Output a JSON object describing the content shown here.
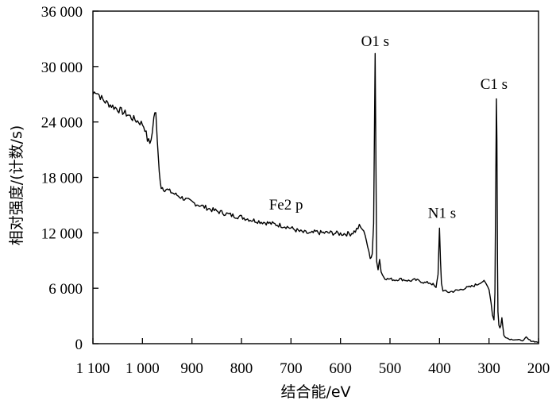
{
  "chart_data": {
    "type": "line",
    "xlabel": "结合能/eV",
    "ylabel": "相对强度/(计数/s)",
    "x_reversed": true,
    "xlim": [
      1100,
      200
    ],
    "ylim": [
      0,
      36000
    ],
    "grid": false,
    "x_ticks": [
      {
        "value": 1100,
        "label": "1 100"
      },
      {
        "value": 1000,
        "label": "1 000"
      },
      {
        "value": 900,
        "label": "900"
      },
      {
        "value": 800,
        "label": "800"
      },
      {
        "value": 700,
        "label": "700"
      },
      {
        "value": 600,
        "label": "600"
      },
      {
        "value": 500,
        "label": "500"
      },
      {
        "value": 400,
        "label": "400"
      },
      {
        "value": 300,
        "label": "300"
      },
      {
        "value": 200,
        "label": "200"
      }
    ],
    "y_ticks": [
      {
        "value": 0,
        "label": "0"
      },
      {
        "value": 6000,
        "label": "6 000"
      },
      {
        "value": 12000,
        "label": "12 000"
      },
      {
        "value": 18000,
        "label": "18 000"
      },
      {
        "value": 24000,
        "label": "24 000"
      },
      {
        "value": 30000,
        "label": "30 000"
      },
      {
        "value": 36000,
        "label": "36 000"
      }
    ],
    "annotations": [
      {
        "text": "O1 s",
        "x": 530,
        "y": 32200
      },
      {
        "text": "C1 s",
        "x": 290,
        "y": 27600
      },
      {
        "text": "Fe2 p",
        "x": 710,
        "y": 14500
      },
      {
        "text": "N1 s",
        "x": 395,
        "y": 13600
      }
    ],
    "series": [
      {
        "x": [
          1100,
          1095,
          1090,
          1080,
          1070,
          1060,
          1050,
          1040,
          1030,
          1020,
          1010,
          1000,
          995,
          990,
          985,
          980,
          977,
          973,
          970,
          966,
          962,
          955,
          945,
          935,
          920,
          900,
          880,
          860,
          840,
          820,
          800,
          780,
          760,
          740,
          720,
          710,
          700,
          690,
          680,
          670,
          660,
          650,
          640,
          620,
          600,
          590,
          580,
          570,
          562,
          556,
          550,
          545,
          540,
          536,
          533,
          530,
          527,
          524,
          521,
          518,
          515,
          510,
          505,
          500,
          490,
          480,
          470,
          460,
          450,
          440,
          430,
          420,
          413,
          407,
          403,
          400,
          398,
          396,
          393,
          390,
          385,
          380,
          370,
          360,
          350,
          340,
          330,
          320,
          310,
          305,
          300,
          296,
          293,
          290,
          288,
          286,
          285,
          284,
          283,
          282,
          280,
          278,
          276,
          274,
          272,
          270,
          266,
          260,
          250,
          240,
          230,
          225,
          220,
          215,
          210,
          205,
          200
        ],
        "y": [
          27000,
          27400,
          27100,
          26400,
          26000,
          25700,
          25400,
          25100,
          24800,
          24400,
          24100,
          23800,
          23300,
          22100,
          21700,
          22800,
          24600,
          25000,
          22000,
          18500,
          17000,
          16800,
          16500,
          16200,
          15800,
          15300,
          14900,
          14500,
          14200,
          13900,
          13700,
          13400,
          13200,
          13000,
          12800,
          12700,
          12500,
          12300,
          12100,
          12000,
          11900,
          12100,
          12000,
          12000,
          11900,
          11900,
          11900,
          12200,
          12700,
          12400,
          11800,
          10500,
          9200,
          9700,
          13000,
          31400,
          9000,
          8000,
          9200,
          7800,
          7400,
          7100,
          7000,
          7000,
          6900,
          7000,
          6900,
          6800,
          6900,
          6800,
          6600,
          6600,
          6400,
          6000,
          7500,
          12500,
          9000,
          6500,
          5800,
          5700,
          5600,
          5600,
          5700,
          5800,
          6000,
          6100,
          6300,
          6500,
          6800,
          6400,
          5900,
          4500,
          3100,
          2600,
          5500,
          20000,
          26500,
          22000,
          9000,
          3500,
          2000,
          1700,
          2000,
          2800,
          1800,
          900,
          700,
          500,
          450,
          400,
          350,
          700,
          450,
          300,
          250,
          200,
          150
        ]
      }
    ]
  }
}
